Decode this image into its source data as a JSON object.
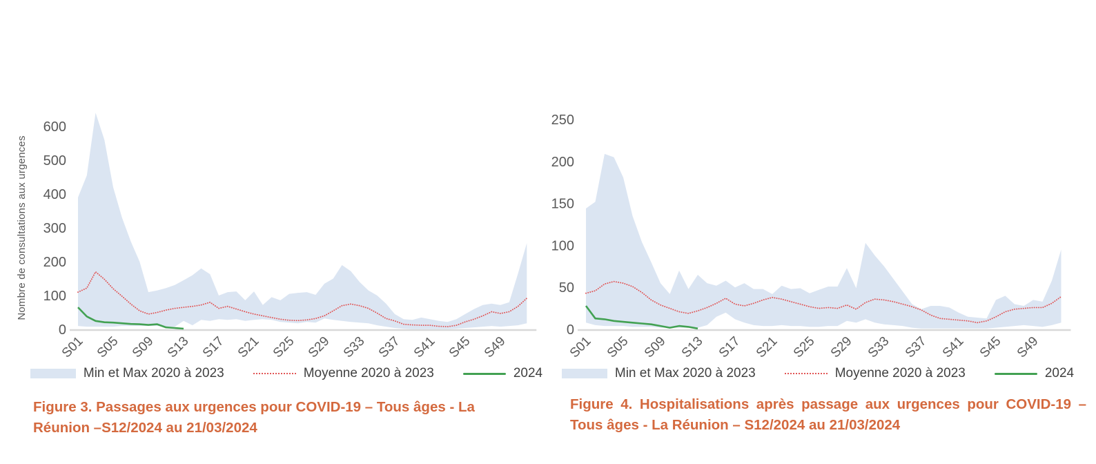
{
  "colors": {
    "band": "#dbe5f2",
    "mean": "#e15555",
    "green": "#42a152",
    "caption": "#d4693e",
    "axis_text": "#595959",
    "legend_text": "#404040",
    "axis_line": "#d8d8d8"
  },
  "legend": {
    "min_max_label": "Min et Max 2020 à 2023",
    "mean_label": "Moyenne 2020 à 2023",
    "line_2024_label": "2024"
  },
  "chart_data": [
    {
      "type": "area",
      "title": "Figure 3. Passages aux urgences pour COVID-19 – Tous âges - La Réunion –S12/2024 au 21/03/2024",
      "ylabel": "Nombre de consultations aux urgences",
      "ylim": [
        0,
        600
      ],
      "y_ticks": [
        0,
        100,
        200,
        300,
        400,
        500,
        600
      ],
      "x_weeks": 52,
      "x_tick_labels": [
        "S01",
        "S05",
        "S09",
        "S13",
        "S17",
        "S21",
        "S25",
        "S29",
        "S33",
        "S37",
        "S41",
        "S45",
        "S49"
      ],
      "grid": false,
      "legend_position": "bottom",
      "series": [
        {
          "name": "Min et Max 2020 à 2023",
          "role": "band",
          "max": [
            390,
            455,
            640,
            560,
            420,
            330,
            260,
            200,
            110,
            115,
            122,
            131,
            145,
            160,
            180,
            163,
            100,
            110,
            112,
            86,
            112,
            72,
            95,
            86,
            105,
            108,
            110,
            102,
            135,
            150,
            190,
            172,
            140,
            115,
            100,
            76,
            45,
            30,
            28,
            35,
            30,
            25,
            22,
            30,
            45,
            60,
            72,
            76,
            72,
            80,
            165,
            255
          ],
          "min": [
            10,
            8,
            8,
            8,
            8,
            10,
            10,
            10,
            10,
            10,
            8,
            8,
            25,
            12,
            28,
            25,
            30,
            28,
            30,
            25,
            28,
            30,
            28,
            22,
            20,
            18,
            22,
            20,
            32,
            28,
            25,
            22,
            20,
            18,
            12,
            8,
            4,
            2,
            1,
            1,
            1,
            1,
            1,
            2,
            4,
            6,
            8,
            10,
            8,
            10,
            12,
            18
          ]
        },
        {
          "name": "Moyenne 2020 à 2023",
          "role": "mean-dotted-line",
          "values": [
            110,
            122,
            170,
            148,
            120,
            98,
            75,
            55,
            45,
            50,
            57,
            62,
            65,
            68,
            72,
            80,
            62,
            68,
            60,
            52,
            45,
            40,
            35,
            30,
            27,
            26,
            28,
            32,
            40,
            55,
            70,
            75,
            70,
            62,
            48,
            32,
            25,
            15,
            13,
            12,
            12,
            9,
            8,
            12,
            22,
            30,
            40,
            52,
            47,
            52,
            68,
            92
          ]
        },
        {
          "name": "2024",
          "role": "current-year-line",
          "values": [
            65,
            38,
            25,
            21,
            20,
            18,
            16,
            15,
            13,
            15,
            6,
            4,
            2
          ]
        }
      ]
    },
    {
      "type": "area",
      "title": "Figure 4. Hospitalisations après passage aux urgences pour COVID-19 – Tous âges - La Réunion – S12/2024 au 21/03/2024",
      "ylabel": "",
      "ylim": [
        0,
        250
      ],
      "y_ticks": [
        0,
        50,
        100,
        150,
        200,
        250
      ],
      "x_weeks": 52,
      "x_tick_labels": [
        "S01",
        "S05",
        "S09",
        "S13",
        "S17",
        "S21",
        "S25",
        "S29",
        "S33",
        "S37",
        "S41",
        "S45",
        "S49"
      ],
      "grid": false,
      "legend_position": "bottom",
      "series": [
        {
          "name": "Min et Max 2020 à 2023",
          "role": "band",
          "max": [
            144,
            152,
            209,
            205,
            181,
            135,
            104,
            80,
            55,
            42,
            70,
            48,
            65,
            55,
            52,
            58,
            50,
            55,
            48,
            48,
            42,
            52,
            48,
            49,
            43,
            47,
            51,
            51,
            73,
            49,
            103,
            88,
            75,
            60,
            45,
            30,
            24,
            28,
            28,
            26,
            20,
            15,
            14,
            13,
            35,
            40,
            30,
            28,
            35,
            33,
            58,
            95
          ],
          "min": [
            8,
            5,
            4,
            4,
            4,
            3,
            3,
            3,
            2,
            2,
            2,
            2,
            2,
            5,
            15,
            20,
            12,
            8,
            5,
            4,
            4,
            5,
            4,
            4,
            3,
            3,
            4,
            4,
            10,
            8,
            12,
            8,
            6,
            5,
            4,
            2,
            1,
            1,
            1,
            1,
            1,
            1,
            1,
            1,
            2,
            3,
            4,
            5,
            4,
            3,
            5,
            8
          ]
        },
        {
          "name": "Moyenne 2020 à 2023",
          "role": "mean-dotted-line",
          "values": [
            43,
            46,
            54,
            57,
            55,
            51,
            44,
            35,
            29,
            25,
            21,
            19,
            22,
            26,
            31,
            37,
            30,
            28,
            31,
            35,
            38,
            36,
            33,
            30,
            27,
            25,
            26,
            25,
            29,
            24,
            32,
            36,
            35,
            33,
            30,
            27,
            23,
            17,
            13,
            12,
            11,
            10,
            8,
            10,
            15,
            21,
            24,
            25,
            26,
            26,
            31,
            39
          ]
        },
        {
          "name": "2024",
          "role": "current-year-line",
          "values": [
            28,
            13,
            12,
            10,
            9,
            8,
            7,
            6,
            4,
            2,
            4,
            3,
            1
          ]
        }
      ]
    }
  ]
}
